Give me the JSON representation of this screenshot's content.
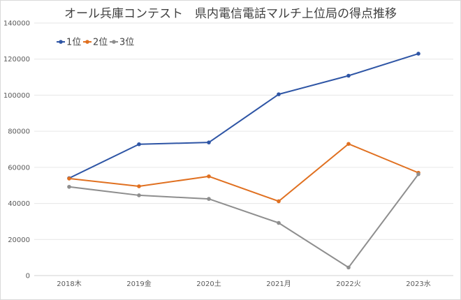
{
  "chart_data": {
    "type": "line",
    "title": "オール兵庫コンテスト　県内電信電話マルチ上位局の得点推移",
    "categories": [
      "2018木",
      "2019金",
      "2020土",
      "2021月",
      "2022火",
      "2023水"
    ],
    "series": [
      {
        "name": "1位",
        "color": "#2e55a5",
        "values": [
          54000,
          72800,
          73800,
          100500,
          110800,
          123000
        ]
      },
      {
        "name": "2位",
        "color": "#e07020",
        "values": [
          53800,
          49500,
          55000,
          41200,
          73000,
          57000
        ]
      },
      {
        "name": "3位",
        "color": "#8e8e8e",
        "values": [
          49200,
          44500,
          42500,
          29200,
          4500,
          56200
        ]
      }
    ],
    "yticks": [
      "0",
      "20000",
      "40000",
      "60000",
      "80000",
      "100000",
      "120000",
      "140000"
    ],
    "ylim": [
      0,
      140000
    ],
    "xlabel": "",
    "ylabel": "",
    "grid": true,
    "legend": "top-left",
    "colors": {
      "grid": "#e6e6e6",
      "axis": "#d0d0d0"
    }
  }
}
